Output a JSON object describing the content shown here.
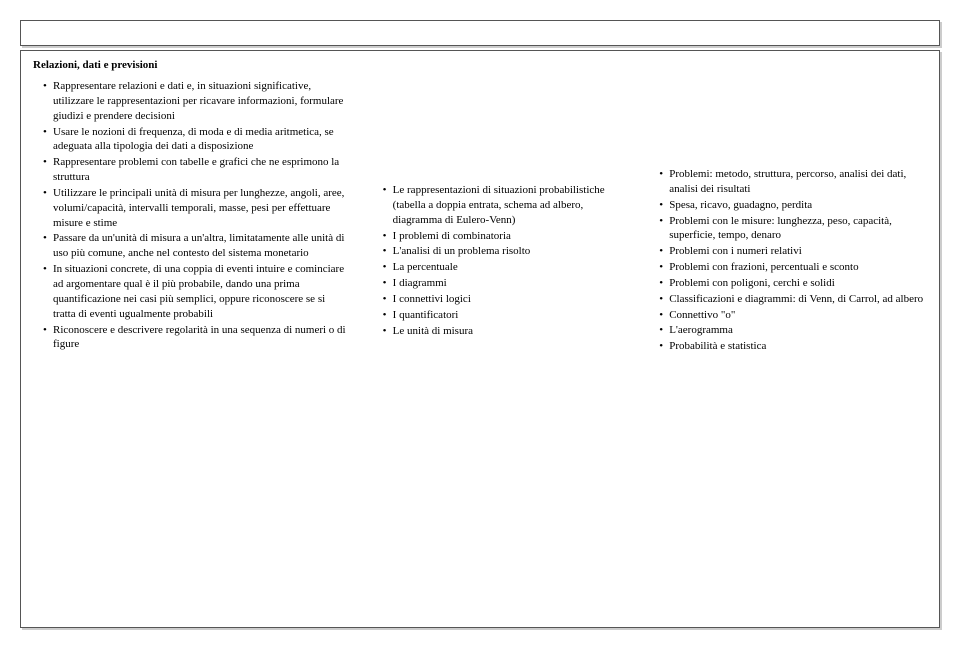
{
  "heading": "Relazioni, dati e previsioni",
  "col1": [
    "Rappresentare relazioni e dati e, in situazioni significative, utilizzare le rappresentazioni per ricavare informazioni, formulare giudizi e prendere decisioni",
    "Usare le nozioni di frequenza, di moda e di media aritmetica, se adeguata alla tipologia dei dati a disposizione",
    "Rappresentare problemi con tabelle e grafici che ne esprimono la struttura",
    "Utilizzare le principali unità di misura per lunghezze, angoli, aree, volumi/capacità, intervalli temporali, masse, pesi per effettuare misure e stime",
    "Passare da un'unità di misura a un'altra, limitatamente alle unità di uso più comune, anche nel contesto del sistema monetario",
    "In situazioni concrete, di una coppia di eventi intuire e cominciare ad argomentare qual è il più probabile, dando una prima quantificazione nei casi più semplici, oppure riconoscere se si tratta di eventi ugualmente probabili",
    "Riconoscere e descrivere regolarità in una sequenza di numeri o di figure"
  ],
  "col2": [
    "Le rappresentazioni di situazioni probabilistiche (tabella a doppia entrata, schema ad albero, diagramma di Eulero-Venn)",
    "I problemi di combinatoria",
    "L'analisi di un problema risolto",
    "La percentuale",
    "I diagrammi",
    "I connettivi logici",
    "I quantificatori",
    "Le unità di misura"
  ],
  "col3": [
    "Problemi: metodo, struttura, percorso, analisi dei dati, analisi dei risultati",
    "Spesa, ricavo, guadagno, perdita",
    "Problemi con le misure: lunghezza, peso, capacità, superficie, tempo, denaro",
    "Problemi con i numeri relativi",
    "Problemi con frazioni, percentuali e sconto",
    "Problemi con poligoni, cerchi e solidi",
    "Classificazioni e diagrammi: di Venn, di Carrol, ad albero",
    "Connettivo \"o\"",
    "L'aerogramma",
    "Probabilità e statistica"
  ]
}
